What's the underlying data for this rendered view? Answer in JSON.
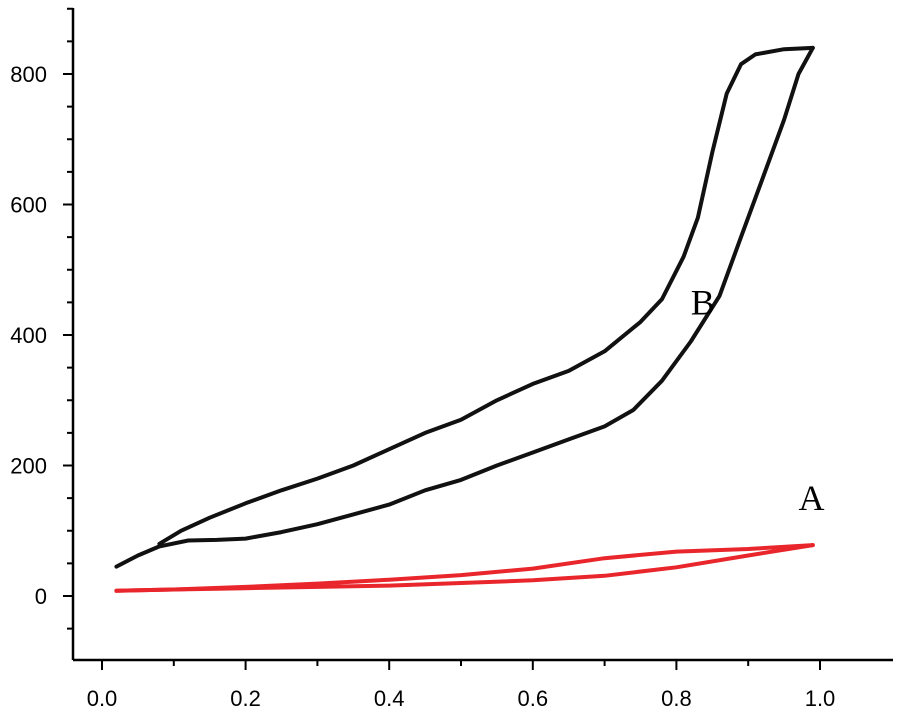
{
  "chart_data": {
    "type": "line",
    "title": "",
    "xlabel": "",
    "ylabel": "",
    "xlim": [
      -0.03,
      1.05
    ],
    "ylim": [
      -100,
      900
    ],
    "x_major_ticks": [
      0.0,
      0.2,
      0.4,
      0.6,
      0.8,
      1.0
    ],
    "x_tick_labels": [
      "0.0",
      "0.2",
      "0.4",
      "0.6",
      "0.8",
      "1.0"
    ],
    "y_major_ticks": [
      0,
      200,
      400,
      600,
      800
    ],
    "y_tick_labels": [
      "0",
      "200",
      "400",
      "600",
      "800"
    ],
    "grid": false,
    "legend": "none",
    "series": [
      {
        "name": "A",
        "color": "#e8262b",
        "label_at": {
          "x": 0.97,
          "y": 150
        },
        "adsorption": {
          "x": [
            0.02,
            0.1,
            0.2,
            0.3,
            0.4,
            0.5,
            0.6,
            0.7,
            0.8,
            0.9,
            0.99
          ],
          "y": [
            8,
            10,
            12,
            14,
            16,
            20,
            24,
            31,
            44,
            62,
            78
          ]
        },
        "desorption": {
          "x": [
            0.99,
            0.9,
            0.8,
            0.7,
            0.6,
            0.5,
            0.4,
            0.3,
            0.2,
            0.1,
            0.02
          ],
          "y": [
            78,
            72,
            68,
            58,
            42,
            32,
            25,
            19,
            14,
            10,
            8
          ]
        }
      },
      {
        "name": "B",
        "color": "#111111",
        "label_at": {
          "x": 0.82,
          "y": 450
        },
        "adsorption": {
          "x": [
            0.02,
            0.05,
            0.08,
            0.12,
            0.16,
            0.2,
            0.25,
            0.3,
            0.35,
            0.4,
            0.45,
            0.5,
            0.55,
            0.6,
            0.65,
            0.7,
            0.74,
            0.78,
            0.82,
            0.86,
            0.89,
            0.92,
            0.95,
            0.97,
            0.99
          ],
          "y": [
            45,
            62,
            76,
            85,
            86,
            88,
            98,
            110,
            125,
            140,
            162,
            178,
            200,
            220,
            240,
            260,
            285,
            330,
            390,
            460,
            550,
            640,
            730,
            800,
            840
          ]
        },
        "desorption": {
          "x": [
            0.99,
            0.95,
            0.91,
            0.89,
            0.87,
            0.85,
            0.83,
            0.81,
            0.78,
            0.75,
            0.7,
            0.65,
            0.6,
            0.55,
            0.5,
            0.45,
            0.4,
            0.35,
            0.3,
            0.25,
            0.2,
            0.15,
            0.11,
            0.08
          ],
          "y": [
            840,
            838,
            830,
            815,
            770,
            680,
            580,
            520,
            455,
            420,
            375,
            345,
            325,
            300,
            270,
            250,
            225,
            200,
            180,
            162,
            142,
            120,
            100,
            80
          ]
        }
      }
    ]
  }
}
